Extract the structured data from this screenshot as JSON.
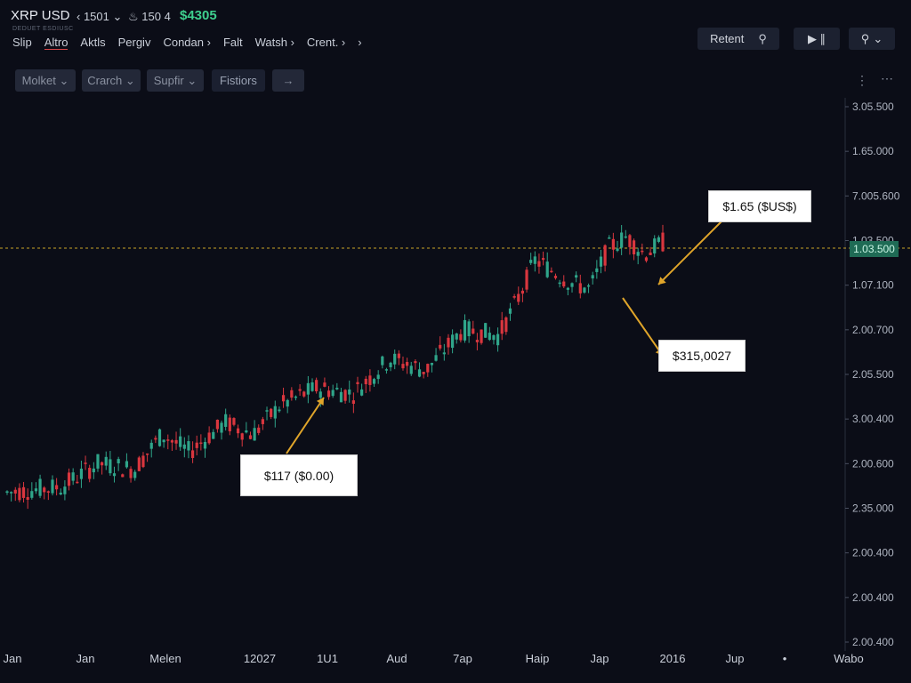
{
  "header": {
    "symbol": "XRP USD",
    "interval": "‹ 1501",
    "interval_caret": "⌄",
    "stat": "150 4",
    "price": "$4305",
    "subtitle": "DEDUET ESDIUSC"
  },
  "menu": {
    "items": [
      "Slip",
      "Altro",
      "Aktls",
      "Pergiv",
      "Condan ›",
      "Falt",
      "Watsh ›",
      "Crent. ›",
      "›"
    ]
  },
  "topright": {
    "retent_label": "Retent",
    "play_label": "▶ ∥",
    "search_caret": "⌄"
  },
  "toolbar": {
    "buttons": [
      "Molket ⌄",
      "Crarch ⌄",
      "Supfir ⌄",
      "Fistiors"
    ],
    "arrow": "→"
  },
  "chart_data": {
    "type": "candlestick",
    "title": "",
    "xlabel": "",
    "ylabel": "",
    "x_tick_labels": [
      "Jan",
      "Jan",
      "Melen",
      "12027",
      "1U1",
      "Aud",
      "7ap",
      "Haip",
      "Jap",
      "2016",
      "Jup",
      "•",
      "Wabo"
    ],
    "y_tick_labels": [
      "3.05.500",
      "1.65.000",
      "7.005.600",
      "1.03.500",
      "1.07.100",
      "2.00.700",
      "2.05.500",
      "3.00.400",
      "2.00.600",
      "2.35.000",
      "2.00.400",
      "2.00.400",
      "2.00.400"
    ],
    "current_price_tag": "1.03.500",
    "trend": [
      [
        0,
        2.2
      ],
      [
        6,
        2.25
      ],
      [
        10,
        2.45
      ],
      [
        14,
        2.4
      ],
      [
        17,
        2.7
      ],
      [
        20,
        2.55
      ],
      [
        24,
        2.8
      ],
      [
        27,
        2.7
      ],
      [
        30,
        2.95
      ],
      [
        34,
        3.1
      ],
      [
        38,
        3.05
      ],
      [
        42,
        3.35
      ],
      [
        46,
        3.25
      ],
      [
        50,
        3.6
      ],
      [
        54,
        3.55
      ],
      [
        56,
        3.85
      ],
      [
        58,
        4.2
      ],
      [
        62,
        4.0
      ],
      [
        64,
        3.95
      ],
      [
        66,
        4.3
      ],
      [
        68,
        4.4
      ],
      [
        70,
        4.25
      ],
      [
        72,
        4.35
      ]
    ],
    "annotations": [
      {
        "text": "$1.65 ($US$)",
        "arrow_target": "right-peak"
      },
      {
        "text": "$315,0027",
        "arrow_target": "right-peak-dip"
      },
      {
        "text": "$117 ($0.00)",
        "arrow_target": "mid-rise"
      }
    ]
  }
}
